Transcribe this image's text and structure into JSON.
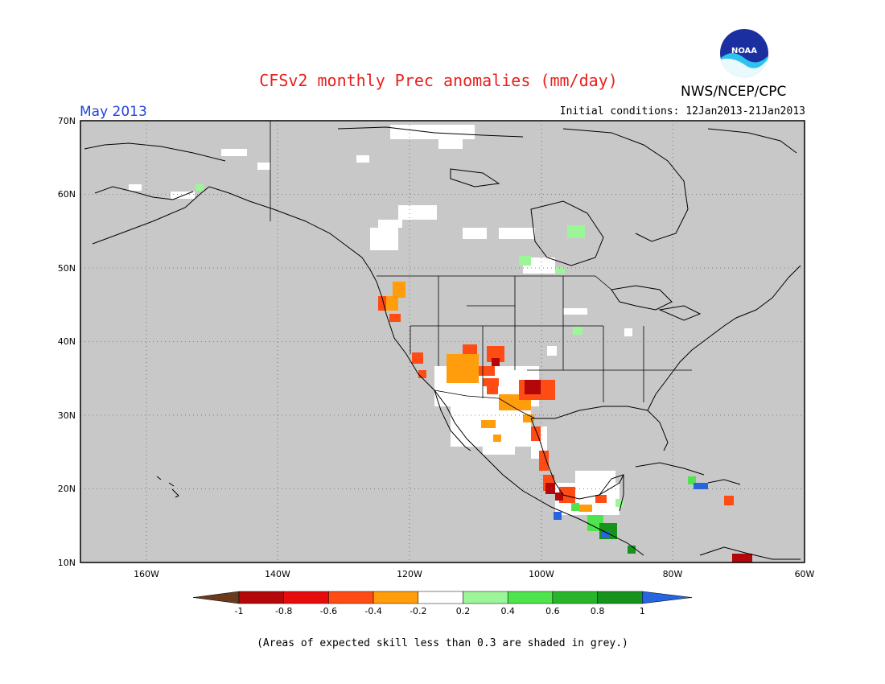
{
  "title": "CFSv2 monthly Prec anomalies (mm/day)",
  "agency": "NWS/NCEP/CPC",
  "logo_text": "NOAA",
  "valid_month": "May 2013",
  "initial_conditions": "Initial conditions: 12Jan2013-21Jan2013",
  "footnote": "(Areas of expected skill less than 0.3 are shaded in grey.)",
  "map": {
    "lon_range": [
      -170,
      -60
    ],
    "lat_range": [
      10,
      70
    ],
    "lat_labels": [
      "70N",
      "60N",
      "50N",
      "40N",
      "30N",
      "20N",
      "10N"
    ],
    "lon_labels": [
      "160W",
      "140W",
      "120W",
      "100W",
      "80W",
      "60W"
    ],
    "background_color": "#c8c8c8",
    "grid": "dotted"
  },
  "colorbar": {
    "labels": [
      "-1",
      "-0.8",
      "-0.6",
      "-0.4",
      "-0.2",
      "0.2",
      "0.4",
      "0.6",
      "0.8",
      "1"
    ],
    "colors": [
      "#6b3a1e",
      "#b3070a",
      "#e80b0b",
      "#ff4b14",
      "#ff9d0c",
      "#ffffff",
      "#9df59a",
      "#4fe34e",
      "#29b52a",
      "#16931c",
      "#2565e0"
    ]
  }
}
